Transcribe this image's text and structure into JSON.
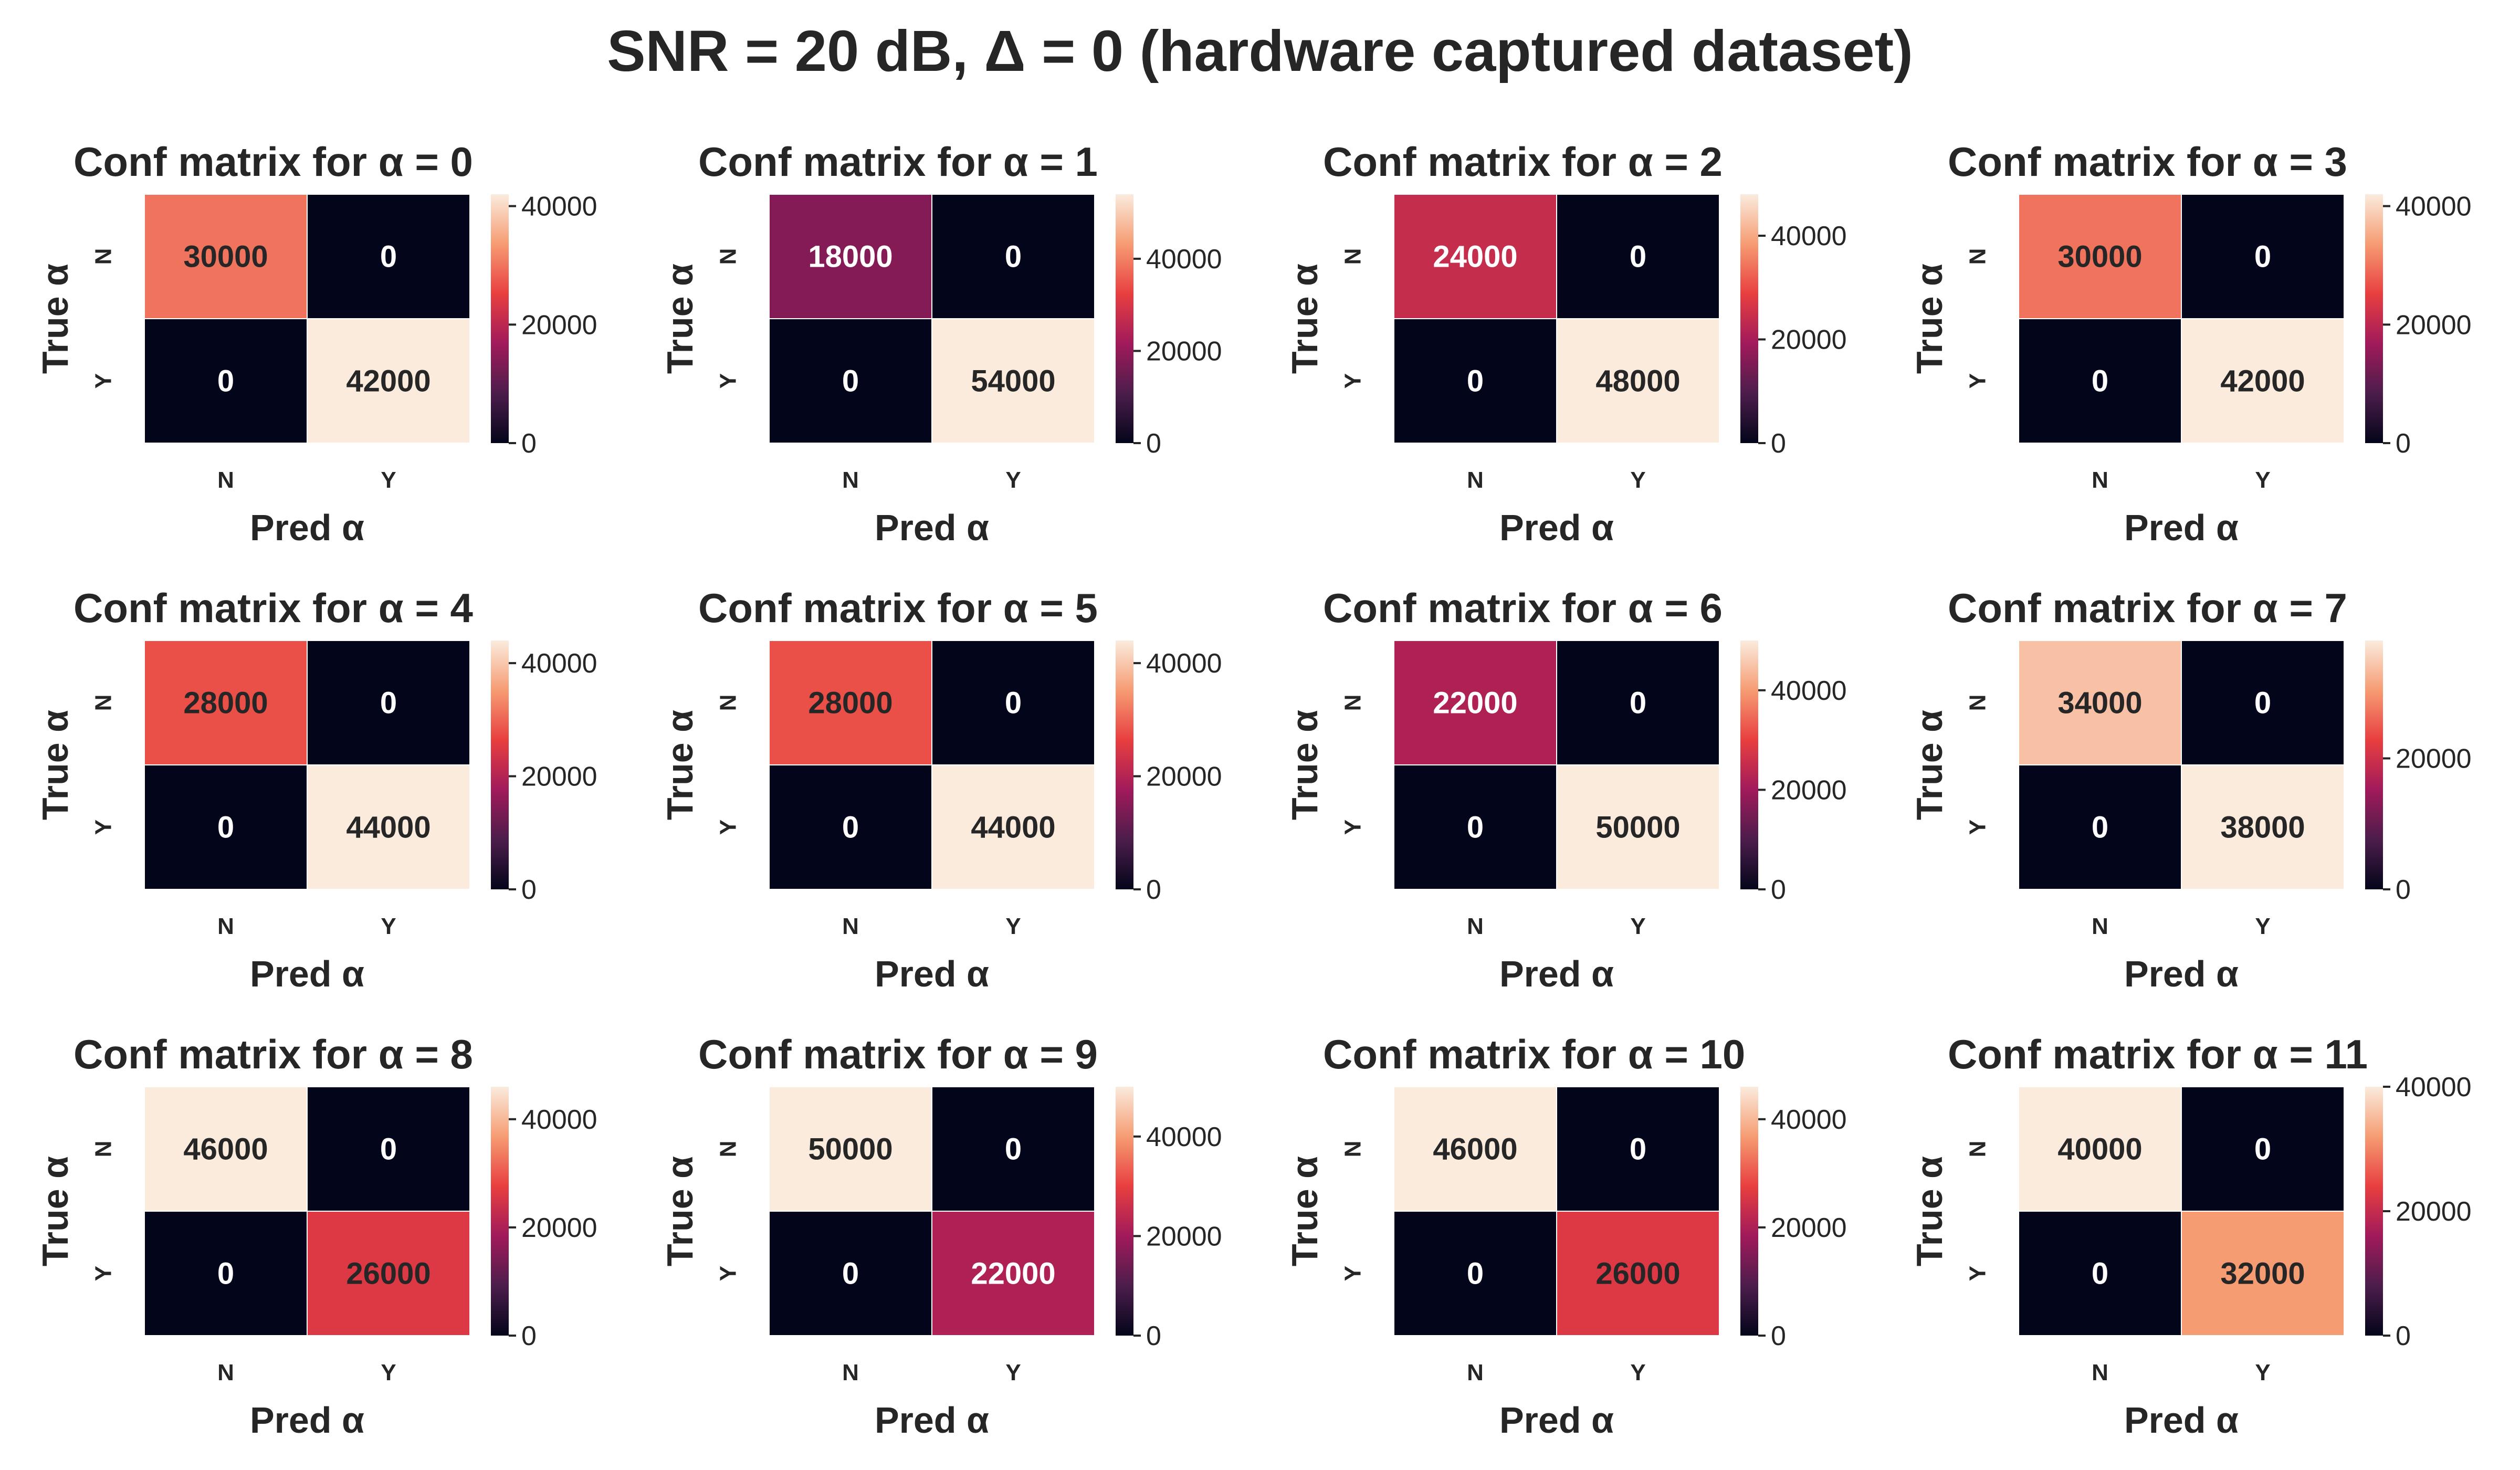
{
  "figure": {
    "title": "SNR = 20 dB, Δ = 0 (hardware captured dataset)"
  },
  "chart_data": [
    {
      "type": "heatmap",
      "title": "Conf matrix for α = 0",
      "xlabel": "Pred α",
      "ylabel": "True α",
      "x_categories": [
        "N",
        "Y"
      ],
      "y_categories": [
        "N",
        "Y"
      ],
      "values": [
        [
          30000,
          0
        ],
        [
          0,
          42000
        ]
      ],
      "colorbar": {
        "max": 42000,
        "ticks": [
          0,
          20000,
          40000
        ]
      }
    },
    {
      "type": "heatmap",
      "title": "Conf matrix for α = 1",
      "xlabel": "Pred α",
      "ylabel": "True α",
      "x_categories": [
        "N",
        "Y"
      ],
      "y_categories": [
        "N",
        "Y"
      ],
      "values": [
        [
          18000,
          0
        ],
        [
          0,
          54000
        ]
      ],
      "colorbar": {
        "max": 54000,
        "ticks": [
          0,
          20000,
          40000
        ]
      }
    },
    {
      "type": "heatmap",
      "title": "Conf matrix for α = 2",
      "xlabel": "Pred α",
      "ylabel": "True α",
      "x_categories": [
        "N",
        "Y"
      ],
      "y_categories": [
        "N",
        "Y"
      ],
      "values": [
        [
          24000,
          0
        ],
        [
          0,
          48000
        ]
      ],
      "colorbar": {
        "max": 48000,
        "ticks": [
          0,
          20000,
          40000
        ]
      }
    },
    {
      "type": "heatmap",
      "title": "Conf matrix for α = 3",
      "xlabel": "Pred α",
      "ylabel": "True α",
      "x_categories": [
        "N",
        "Y"
      ],
      "y_categories": [
        "N",
        "Y"
      ],
      "values": [
        [
          30000,
          0
        ],
        [
          0,
          42000
        ]
      ],
      "colorbar": {
        "max": 42000,
        "ticks": [
          0,
          20000,
          40000
        ]
      }
    },
    {
      "type": "heatmap",
      "title": "Conf matrix for α = 4",
      "xlabel": "Pred α",
      "ylabel": "True α",
      "x_categories": [
        "N",
        "Y"
      ],
      "y_categories": [
        "N",
        "Y"
      ],
      "values": [
        [
          28000,
          0
        ],
        [
          0,
          44000
        ]
      ],
      "colorbar": {
        "max": 44000,
        "ticks": [
          0,
          20000,
          40000
        ]
      }
    },
    {
      "type": "heatmap",
      "title": "Conf matrix for α = 5",
      "xlabel": "Pred α",
      "ylabel": "True α",
      "x_categories": [
        "N",
        "Y"
      ],
      "y_categories": [
        "N",
        "Y"
      ],
      "values": [
        [
          28000,
          0
        ],
        [
          0,
          44000
        ]
      ],
      "colorbar": {
        "max": 44000,
        "ticks": [
          0,
          20000,
          40000
        ]
      }
    },
    {
      "type": "heatmap",
      "title": "Conf matrix for α = 6",
      "xlabel": "Pred α",
      "ylabel": "True α",
      "x_categories": [
        "N",
        "Y"
      ],
      "y_categories": [
        "N",
        "Y"
      ],
      "values": [
        [
          22000,
          0
        ],
        [
          0,
          50000
        ]
      ],
      "colorbar": {
        "max": 50000,
        "ticks": [
          0,
          20000,
          40000
        ]
      }
    },
    {
      "type": "heatmap",
      "title": "Conf matrix for α = 7",
      "xlabel": "Pred α",
      "ylabel": "True α",
      "x_categories": [
        "N",
        "Y"
      ],
      "y_categories": [
        "N",
        "Y"
      ],
      "values": [
        [
          34000,
          0
        ],
        [
          0,
          38000
        ]
      ],
      "colorbar": {
        "max": 38000,
        "ticks": [
          0,
          20000
        ]
      }
    },
    {
      "type": "heatmap",
      "title": "Conf matrix for α = 8",
      "xlabel": "Pred α",
      "ylabel": "True α",
      "x_categories": [
        "N",
        "Y"
      ],
      "y_categories": [
        "N",
        "Y"
      ],
      "values": [
        [
          46000,
          0
        ],
        [
          0,
          26000
        ]
      ],
      "colorbar": {
        "max": 46000,
        "ticks": [
          0,
          20000,
          40000
        ]
      }
    },
    {
      "type": "heatmap",
      "title": "Conf matrix for α = 9",
      "xlabel": "Pred α",
      "ylabel": "True α",
      "x_categories": [
        "N",
        "Y"
      ],
      "y_categories": [
        "N",
        "Y"
      ],
      "values": [
        [
          50000,
          0
        ],
        [
          0,
          22000
        ]
      ],
      "colorbar": {
        "max": 50000,
        "ticks": [
          0,
          20000,
          40000
        ]
      }
    },
    {
      "type": "heatmap",
      "title": "Conf matrix for α = 10",
      "xlabel": "Pred α",
      "ylabel": "True α",
      "x_categories": [
        "N",
        "Y"
      ],
      "y_categories": [
        "N",
        "Y"
      ],
      "values": [
        [
          46000,
          0
        ],
        [
          0,
          26000
        ]
      ],
      "colorbar": {
        "max": 46000,
        "ticks": [
          0,
          20000,
          40000
        ]
      }
    },
    {
      "type": "heatmap",
      "title": "Conf matrix for α = 11",
      "xlabel": "Pred α",
      "ylabel": "True α",
      "x_categories": [
        "N",
        "Y"
      ],
      "y_categories": [
        "N",
        "Y"
      ],
      "values": [
        [
          40000,
          0
        ],
        [
          0,
          32000
        ]
      ],
      "colorbar": {
        "max": 40000,
        "ticks": [
          0,
          20000,
          40000
        ]
      }
    }
  ]
}
